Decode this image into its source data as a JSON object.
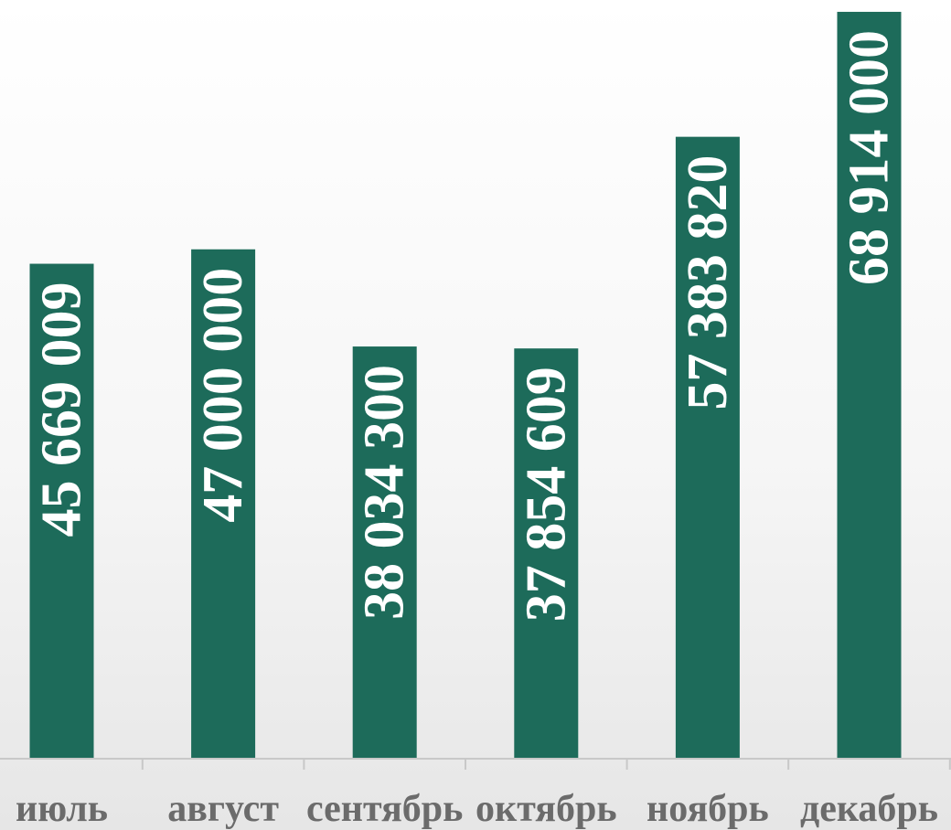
{
  "chart_data": {
    "type": "bar",
    "categories": [
      "июль",
      "август",
      "сентябрь",
      "октябрь",
      "ноябрь",
      "декабрь"
    ],
    "values": [
      45669009,
      47000000,
      38034300,
      37854609,
      57383820,
      68914000
    ],
    "data_labels": [
      "45 669 009",
      "47 000 000",
      "38 034 300",
      "37 854 609",
      "57 383 820",
      "68 914 000"
    ],
    "title": "",
    "xlabel": "",
    "ylabel": "",
    "ylim": [
      0,
      69500000
    ],
    "grid": false,
    "legend": "none",
    "bar_color": "#1d6b5a",
    "label_color": "#ffffff",
    "category_label_color": "#6b6b6b"
  }
}
